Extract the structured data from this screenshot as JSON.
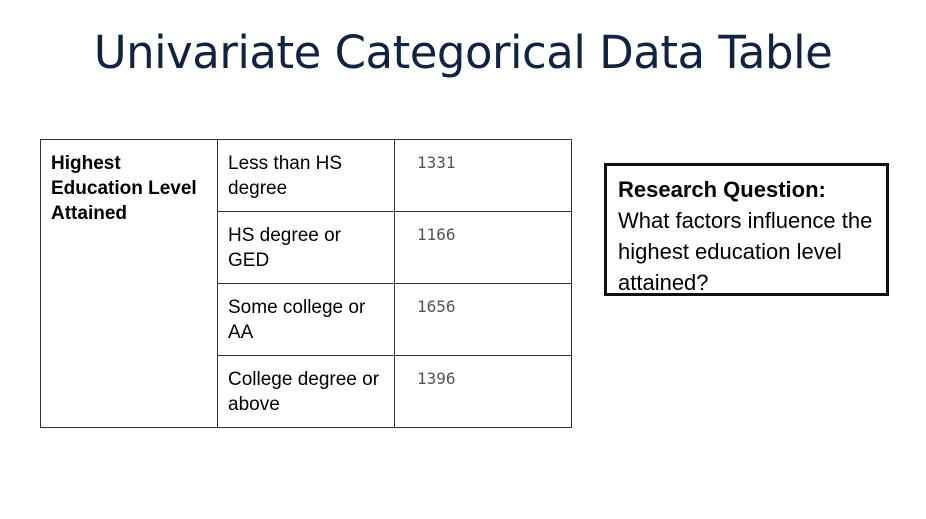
{
  "title": "Univariate Categorical Data Table",
  "table": {
    "variable": "Highest Education Level Attained",
    "rows": [
      {
        "category": "Less than HS degree",
        "count": "1331"
      },
      {
        "category": "HS degree or GED",
        "count": "1166"
      },
      {
        "category": "Some college or AA",
        "count": "1656"
      },
      {
        "category": "College degree or above",
        "count": "1396"
      }
    ]
  },
  "research": {
    "label": "Research Question:",
    "question": "What factors influence the highest education level attained?"
  },
  "colors": {
    "title": "#13233f",
    "border": "#333333",
    "count_text": "#555555"
  }
}
